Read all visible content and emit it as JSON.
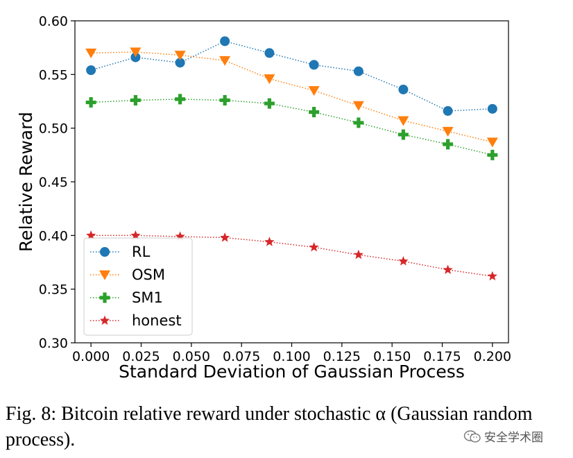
{
  "chart_data": {
    "type": "line",
    "xlabel": "Standard Deviation of Gaussian Process",
    "ylabel": "Relative Reward",
    "xlim": [
      -0.008,
      0.208
    ],
    "ylim": [
      0.3,
      0.6
    ],
    "xticks": [
      "0.000",
      "0.025",
      "0.050",
      "0.075",
      "0.100",
      "0.125",
      "0.150",
      "0.175",
      "0.200"
    ],
    "xtick_values": [
      0.0,
      0.025,
      0.05,
      0.075,
      0.1,
      0.125,
      0.15,
      0.175,
      0.2
    ],
    "yticks": [
      "0.30",
      "0.35",
      "0.40",
      "0.45",
      "0.50",
      "0.55",
      "0.60"
    ],
    "ytick_values": [
      0.3,
      0.35,
      0.4,
      0.45,
      0.5,
      0.55,
      0.6
    ],
    "grid": false,
    "legend_position": "lower-left",
    "x": [
      0.0,
      0.0222,
      0.0444,
      0.0667,
      0.0889,
      0.1111,
      0.1333,
      0.1556,
      0.1778,
      0.2
    ],
    "series": [
      {
        "name": "RL",
        "color": "#1f77b4",
        "marker": "circle",
        "values": [
          0.554,
          0.566,
          0.561,
          0.581,
          0.57,
          0.559,
          0.553,
          0.536,
          0.516,
          0.518
        ]
      },
      {
        "name": "OSM",
        "color": "#ff7f0e",
        "marker": "triangle-down",
        "values": [
          0.57,
          0.571,
          0.568,
          0.563,
          0.546,
          0.535,
          0.521,
          0.507,
          0.497,
          0.487
        ]
      },
      {
        "name": "SM1",
        "color": "#2ca02c",
        "marker": "plus",
        "values": [
          0.524,
          0.526,
          0.527,
          0.526,
          0.523,
          0.515,
          0.505,
          0.494,
          0.485,
          0.475
        ]
      },
      {
        "name": "honest",
        "color": "#d62728",
        "marker": "star",
        "values": [
          0.4,
          0.4,
          0.399,
          0.398,
          0.394,
          0.389,
          0.382,
          0.376,
          0.368,
          0.362
        ]
      }
    ]
  },
  "caption": {
    "text": "Fig. 8: Bitcoin relative reward under stochastic α (Gaussian random process)."
  },
  "watermark": {
    "text": "安全学术圈",
    "icon": "wechat-icon"
  }
}
